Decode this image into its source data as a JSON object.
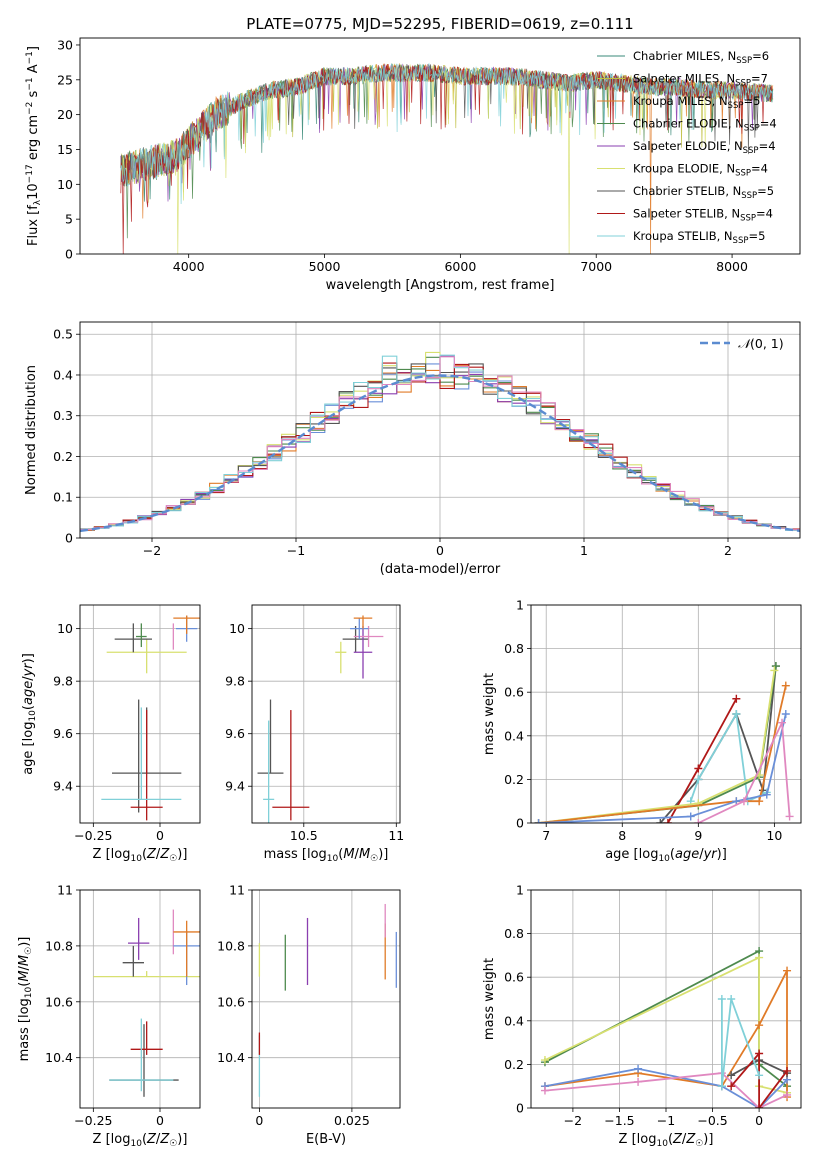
{
  "figure": {
    "title": "PLATE=0775, MJD=52295, FIBERID=0619, z=0.111"
  },
  "colors": {
    "chabrier_miles": "#3a8a78",
    "salpeter_miles": "#bfbf40",
    "kroupa_miles": "#e07b28",
    "chabrier_elodie": "#4e8a4e",
    "salpeter_elodie": "#8a3fb0",
    "kroupa_elodie": "#d8e070",
    "chabrier_stelib": "#555555",
    "salpeter_stelib": "#b01818",
    "kroupa_stelib": "#80d0d8",
    "blue": "#6a8fd8",
    "pink": "#e088c0",
    "normal_curve": "#5b8bd0"
  },
  "chart_data": [
    {
      "id": "spectrum",
      "type": "line",
      "title": "PLATE=0775, MJD=52295, FIBERID=0619, z=0.111",
      "xlabel": "wavelength [Angstrom, rest frame]",
      "ylabel": "Flux [f_λ10^-17 erg cm^-2 s^-1 A^-1]",
      "xlim": [
        3200,
        8500
      ],
      "ylim": [
        0,
        31
      ],
      "xticks": [
        4000,
        5000,
        6000,
        7000,
        8000
      ],
      "yticks": [
        0,
        5,
        10,
        15,
        20,
        25,
        30
      ],
      "grid": false,
      "legend_position": "right",
      "x_range_data": [
        3500,
        8300
      ],
      "series_anchor": {
        "x": [
          3500,
          3700,
          3900,
          4000,
          4200,
          4400,
          4600,
          4800,
          5000,
          5200,
          5400,
          5600,
          5800,
          6000,
          6200,
          6400,
          6600,
          6800,
          7000,
          7200,
          7400,
          7600,
          7800,
          8000,
          8300
        ],
        "y": [
          12,
          13,
          14,
          16,
          20,
          22,
          23.5,
          24,
          25.5,
          25.5,
          26,
          26,
          26,
          25.5,
          25.5,
          25.5,
          25,
          24.5,
          25,
          24.5,
          24,
          24,
          23.5,
          23.5,
          23
        ]
      },
      "dropouts": [
        {
          "x": 3520,
          "name": "Salpeter STELIB"
        },
        {
          "x": 3920,
          "name": "Kroupa ELODIE"
        },
        {
          "x": 6800,
          "name": "Kroupa ELODIE"
        },
        {
          "x": 7400,
          "name": "Kroupa MILES"
        }
      ],
      "series": [
        {
          "name": "Chabrier MILES",
          "nssp": "6",
          "color_key": "chabrier_miles"
        },
        {
          "name": "Salpeter MILES",
          "nssp": "7",
          "color_key": "salpeter_miles"
        },
        {
          "name": "Kroupa MILES",
          "nssp": "5",
          "color_key": "kroupa_miles"
        },
        {
          "name": "Chabrier ELODIE",
          "nssp": "4",
          "color_key": "chabrier_elodie"
        },
        {
          "name": "Salpeter ELODIE",
          "nssp": "4",
          "color_key": "salpeter_elodie"
        },
        {
          "name": "Kroupa ELODIE",
          "nssp": "4",
          "color_key": "kroupa_elodie"
        },
        {
          "name": "Chabrier STELIB",
          "nssp": "5",
          "color_key": "chabrier_stelib"
        },
        {
          "name": "Salpeter STELIB",
          "nssp": "4",
          "color_key": "salpeter_stelib"
        },
        {
          "name": "Kroupa STELIB",
          "nssp": "5",
          "color_key": "kroupa_stelib"
        }
      ]
    },
    {
      "id": "residuals",
      "type": "histogram",
      "xlabel": "(data-model)/error",
      "ylabel": "Normed distribution",
      "xlim": [
        -2.5,
        2.5
      ],
      "ylim": [
        0,
        0.53
      ],
      "xticks": [
        -2,
        -1,
        0,
        1,
        2
      ],
      "yticks": [
        0.0,
        0.1,
        0.2,
        0.3,
        0.4,
        0.5
      ],
      "grid": true,
      "legend_position": "top-right",
      "legend_label": "N(0,1)",
      "bin_width": 0.1,
      "approx_peak": 0.39,
      "max_bar": 0.5,
      "n_histograms": 9
    },
    {
      "id": "age_vs_Z",
      "type": "errorbar",
      "xlabel": "Z [log10(Z/Z☉)]",
      "ylabel": "age  [log10(age/yr)]",
      "xlim": [
        -0.3,
        0.15
      ],
      "ylim": [
        9.26,
        10.09
      ],
      "xticks": [
        -0.25,
        0.0
      ],
      "yticks": [
        9.4,
        9.6,
        9.8,
        10.0
      ],
      "grid": true,
      "points": [
        {
          "x": -0.05,
          "y": 9.45,
          "xerr": 0.13,
          "yerr_lo": 0.0,
          "yerr_hi": 0.25,
          "color_key": "chabrier_stelib"
        },
        {
          "x": -0.08,
          "y": 9.45,
          "xerr": 0.0,
          "yerr_lo": 0.15,
          "yerr_hi": 0.28,
          "color_key": "chabrier_stelib"
        },
        {
          "x": -0.05,
          "y": 9.32,
          "xerr": 0.06,
          "yerr_lo": 0.05,
          "yerr_hi": 0.37,
          "color_key": "salpeter_stelib"
        },
        {
          "x": -0.07,
          "y": 9.35,
          "xerr": 0.15,
          "yerr_lo": 0.0,
          "yerr_hi": 0.35,
          "color_key": "kroupa_stelib"
        },
        {
          "x": -0.05,
          "y": 9.91,
          "xerr": 0.15,
          "yerr_lo": 0.08,
          "yerr_hi": 0.05,
          "color_key": "kroupa_elodie"
        },
        {
          "x": -0.1,
          "y": 9.96,
          "xerr": 0.07,
          "yerr_lo": 0.05,
          "yerr_hi": 0.06,
          "color_key": "chabrier_stelib"
        },
        {
          "x": -0.07,
          "y": 9.97,
          "xerr": 0.02,
          "yerr_lo": 0.04,
          "yerr_hi": 0.05,
          "color_key": "chabrier_elodie"
        },
        {
          "x": 0.05,
          "y": 9.97,
          "xerr": 0.0,
          "yerr_lo": 0.05,
          "yerr_hi": 0.05,
          "color_key": "pink"
        },
        {
          "x": 0.1,
          "y": 10.0,
          "xerr": 0.04,
          "yerr_lo": 0.05,
          "yerr_hi": 0.05,
          "color_key": "blue"
        },
        {
          "x": 0.1,
          "y": 10.04,
          "xerr": 0.05,
          "yerr_lo": 0.06,
          "yerr_hi": 0.01,
          "color_key": "kroupa_miles"
        }
      ]
    },
    {
      "id": "age_vs_mass",
      "type": "errorbar",
      "xlabel": "mass [log10(M/M☉)]",
      "ylabel": "",
      "xlim": [
        10.22,
        11.02
      ],
      "ylim": [
        9.26,
        10.09
      ],
      "xticks": [
        10.5,
        11.0
      ],
      "yticks": [
        9.4,
        9.6,
        9.8,
        10.0
      ],
      "grid": true,
      "points": [
        {
          "x": 10.32,
          "y": 9.45,
          "xerr": 0.07,
          "yerr_lo": 0.0,
          "yerr_hi": 0.28,
          "color_key": "chabrier_stelib"
        },
        {
          "x": 10.43,
          "y": 9.32,
          "xerr": 0.1,
          "yerr_lo": 0.05,
          "yerr_hi": 0.37,
          "color_key": "salpeter_stelib"
        },
        {
          "x": 10.31,
          "y": 9.35,
          "xerr": 0.03,
          "yerr_lo": 0.1,
          "yerr_hi": 0.3,
          "color_key": "kroupa_stelib"
        },
        {
          "x": 10.7,
          "y": 9.91,
          "xerr": 0.03,
          "yerr_lo": 0.08,
          "yerr_hi": 0.04,
          "color_key": "kroupa_elodie"
        },
        {
          "x": 10.78,
          "y": 9.96,
          "xerr": 0.07,
          "yerr_lo": 0.05,
          "yerr_hi": 0.05,
          "color_key": "chabrier_stelib"
        },
        {
          "x": 10.82,
          "y": 9.91,
          "xerr": 0.05,
          "yerr_lo": 0.1,
          "yerr_hi": 0.1,
          "color_key": "salpeter_elodie"
        },
        {
          "x": 10.85,
          "y": 9.97,
          "xerr": 0.08,
          "yerr_lo": 0.04,
          "yerr_hi": 0.04,
          "color_key": "pink"
        },
        {
          "x": 10.8,
          "y": 10.0,
          "xerr": 0.05,
          "yerr_lo": 0.04,
          "yerr_hi": 0.04,
          "color_key": "blue"
        },
        {
          "x": 10.82,
          "y": 10.04,
          "xerr": 0.05,
          "yerr_lo": 0.04,
          "yerr_hi": 0.01,
          "color_key": "kroupa_miles"
        }
      ]
    },
    {
      "id": "weight_vs_age",
      "type": "line",
      "xlabel": "age  [log10(age/yr)]",
      "ylabel": "mass weight",
      "xlim": [
        6.8,
        10.35
      ],
      "ylim": [
        0,
        1
      ],
      "xticks": [
        7,
        8,
        9,
        10
      ],
      "yticks": [
        0.0,
        0.2,
        0.4,
        0.6,
        0.8,
        1.0
      ],
      "grid": true,
      "series": [
        {
          "color_key": "chabrier_stelib",
          "x": [
            8.5,
            9.0,
            9.5,
            9.85,
            10.02
          ],
          "y": [
            0.0,
            0.2,
            0.5,
            0.15,
            0.72
          ]
        },
        {
          "color_key": "salpeter_stelib",
          "x": [
            8.6,
            9.0,
            9.5
          ],
          "y": [
            0.0,
            0.25,
            0.57
          ]
        },
        {
          "color_key": "kroupa_stelib",
          "x": [
            8.9,
            9.0,
            9.5,
            9.65,
            9.9
          ],
          "y": [
            0.1,
            0.2,
            0.5,
            0.1,
            0.14
          ]
        },
        {
          "color_key": "chabrier_elodie",
          "x": [
            6.9,
            9.0,
            9.8,
            10.02
          ],
          "y": [
            0.0,
            0.08,
            0.21,
            0.72
          ]
        },
        {
          "color_key": "kroupa_elodie",
          "x": [
            6.9,
            9.0,
            9.8,
            10.0
          ],
          "y": [
            0.0,
            0.09,
            0.22,
            0.7
          ]
        },
        {
          "color_key": "kroupa_miles",
          "x": [
            6.9,
            9.5,
            9.8,
            10.15
          ],
          "y": [
            0.0,
            0.1,
            0.1,
            0.63
          ]
        },
        {
          "color_key": "blue",
          "x": [
            6.9,
            8.9,
            9.5,
            9.9,
            10.15
          ],
          "y": [
            0.0,
            0.03,
            0.1,
            0.13,
            0.5
          ]
        },
        {
          "color_key": "pink",
          "x": [
            9.0,
            9.6,
            10.1,
            10.2
          ],
          "y": [
            0.0,
            0.1,
            0.46,
            0.03
          ]
        }
      ]
    },
    {
      "id": "mass_vs_Z",
      "type": "errorbar",
      "xlabel": "Z [log10(Z/Z☉)]",
      "ylabel": "mass [log10(M/M☉)]",
      "xlim": [
        -0.3,
        0.15
      ],
      "ylim": [
        10.22,
        11.0
      ],
      "xticks": [
        -0.25,
        0.0
      ],
      "yticks": [
        10.4,
        10.6,
        10.8,
        11.0
      ],
      "grid": true,
      "points": [
        {
          "x": -0.06,
          "y": 10.32,
          "xerr": 0.13,
          "yerr_lo": 0.06,
          "yerr_hi": 0.2,
          "color_key": "chabrier_stelib"
        },
        {
          "x": -0.05,
          "y": 10.43,
          "xerr": 0.06,
          "yerr_lo": 0.02,
          "yerr_hi": 0.1,
          "color_key": "salpeter_stelib"
        },
        {
          "x": -0.07,
          "y": 10.32,
          "xerr": 0.12,
          "yerr_lo": 0.04,
          "yerr_hi": 0.22,
          "color_key": "kroupa_stelib"
        },
        {
          "x": -0.05,
          "y": 10.69,
          "xerr": 0.2,
          "yerr_lo": 0.0,
          "yerr_hi": 0.02,
          "color_key": "kroupa_elodie"
        },
        {
          "x": -0.1,
          "y": 10.74,
          "xerr": 0.04,
          "yerr_lo": 0.05,
          "yerr_hi": 0.06,
          "color_key": "chabrier_stelib"
        },
        {
          "x": -0.08,
          "y": 10.81,
          "xerr": 0.04,
          "yerr_lo": 0.06,
          "yerr_hi": 0.09,
          "color_key": "salpeter_elodie"
        },
        {
          "x": 0.05,
          "y": 10.85,
          "xerr": 0.0,
          "yerr_lo": 0.08,
          "yerr_hi": 0.08,
          "color_key": "pink"
        },
        {
          "x": 0.1,
          "y": 10.8,
          "xerr": 0.05,
          "yerr_lo": 0.14,
          "yerr_hi": 0.05,
          "color_key": "blue"
        },
        {
          "x": 0.1,
          "y": 10.85,
          "xerr": 0.05,
          "yerr_lo": 0.16,
          "yerr_hi": 0.04,
          "color_key": "kroupa_miles"
        }
      ]
    },
    {
      "id": "mass_vs_ebv",
      "type": "errorbar",
      "xlabel": "E(B-V)",
      "ylabel": "",
      "xlim": [
        -0.002,
        0.038
      ],
      "ylim": [
        10.22,
        11.0
      ],
      "xticks": [
        0.0,
        0.025
      ],
      "yticks": [
        10.4,
        10.6,
        10.8,
        11.0
      ],
      "grid": true,
      "points": [
        {
          "x": 0.0,
          "y": 10.32,
          "xerr": 0.0,
          "yerr_lo": 0.06,
          "yerr_hi": 0.16,
          "color_key": "kroupa_stelib"
        },
        {
          "x": 0.0,
          "y": 10.43,
          "xerr": 0.0,
          "yerr_lo": 0.02,
          "yerr_hi": 0.06,
          "color_key": "salpeter_stelib"
        },
        {
          "x": 0.0,
          "y": 10.69,
          "xerr": 0.0,
          "yerr_lo": 0.0,
          "yerr_hi": 0.12,
          "color_key": "kroupa_elodie"
        },
        {
          "x": 0.007,
          "y": 10.74,
          "xerr": 0.0,
          "yerr_lo": 0.1,
          "yerr_hi": 0.1,
          "color_key": "chabrier_elodie"
        },
        {
          "x": 0.013,
          "y": 10.78,
          "xerr": 0.0,
          "yerr_lo": 0.12,
          "yerr_hi": 0.12,
          "color_key": "salpeter_elodie"
        },
        {
          "x": 0.034,
          "y": 10.8,
          "xerr": 0.0,
          "yerr_lo": 0.12,
          "yerr_hi": 0.08,
          "color_key": "kroupa_miles"
        },
        {
          "x": 0.034,
          "y": 10.87,
          "xerr": 0.0,
          "yerr_lo": 0.04,
          "yerr_hi": 0.08,
          "color_key": "pink"
        },
        {
          "x": 0.037,
          "y": 10.75,
          "xerr": 0.0,
          "yerr_lo": 0.1,
          "yerr_hi": 0.1,
          "color_key": "blue"
        }
      ]
    },
    {
      "id": "weight_vs_Z",
      "type": "line",
      "xlabel": "Z [log10(Z/Z☉)]",
      "ylabel": "mass weight",
      "xlim": [
        -2.45,
        0.45
      ],
      "ylim": [
        0,
        1
      ],
      "xticks": [
        -2.0,
        -1.5,
        -1.0,
        -0.5,
        0.0
      ],
      "yticks": [
        0.0,
        0.2,
        0.4,
        0.6,
        0.8,
        1.0
      ],
      "grid": true,
      "series": [
        {
          "color_key": "chabrier_elodie",
          "x": [
            -2.3,
            0.0,
            0.0,
            0.3
          ],
          "y": [
            0.21,
            0.72,
            0.2,
            0.1
          ]
        },
        {
          "color_key": "kroupa_elodie",
          "x": [
            -2.3,
            0.0,
            0.0,
            0.3
          ],
          "y": [
            0.22,
            0.69,
            0.1,
            0.07
          ]
        },
        {
          "color_key": "kroupa_miles",
          "x": [
            -2.3,
            -1.3,
            -0.4,
            0.0,
            0.3,
            0.3
          ],
          "y": [
            0.1,
            0.16,
            0.1,
            0.38,
            0.63,
            0.05
          ]
        },
        {
          "color_key": "blue",
          "x": [
            -2.3,
            -1.3,
            -0.4,
            0.0,
            0.3
          ],
          "y": [
            0.1,
            0.18,
            0.1,
            0.0,
            0.13
          ]
        },
        {
          "color_key": "pink",
          "x": [
            -2.3,
            -1.3,
            -0.4,
            0.0,
            0.3
          ],
          "y": [
            0.08,
            0.12,
            0.16,
            0.0,
            0.06
          ]
        },
        {
          "color_key": "chabrier_stelib",
          "x": [
            -0.3,
            0.0,
            0.3
          ],
          "y": [
            0.15,
            0.22,
            0.16
          ]
        },
        {
          "color_key": "salpeter_stelib",
          "x": [
            -0.3,
            0.0,
            0.0,
            0.3
          ],
          "y": [
            0.1,
            0.25,
            0.0,
            0.17
          ]
        },
        {
          "color_key": "kroupa_stelib",
          "x": [
            -0.4,
            -0.4,
            -0.3,
            0.0
          ],
          "y": [
            0.5,
            0.1,
            0.5,
            0.15
          ]
        }
      ]
    }
  ]
}
